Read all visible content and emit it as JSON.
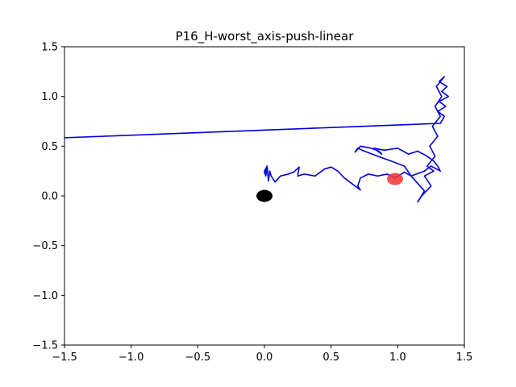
{
  "chart_data": {
    "type": "line",
    "title": "P16_H-worst_axis-push-linear",
    "xlabel": "",
    "ylabel": "",
    "xlim": [
      -1.5,
      1.5
    ],
    "ylim": [
      -1.5,
      1.5
    ],
    "x_ticks": [
      -1.5,
      -1.0,
      -0.5,
      0.0,
      0.5,
      1.0,
      1.5
    ],
    "x_tick_labels": [
      "−1.5",
      "−1.0",
      "−0.5",
      "0.0",
      "0.5",
      "1.0",
      "1.5"
    ],
    "y_ticks": [
      -1.5,
      -1.0,
      -0.5,
      0.0,
      0.5,
      1.0,
      1.5
    ],
    "y_tick_labels": [
      "−1.5",
      "−1.0",
      "−0.5",
      "0.0",
      "0.5",
      "1.0",
      "1.5"
    ],
    "grid": false,
    "series": [
      {
        "color": "#0000dd",
        "x": [
          -1.6,
          1.32,
          1.35,
          1.3,
          1.36,
          1.31,
          1.38,
          1.33,
          1.37,
          1.31,
          1.35,
          1.29,
          1.33,
          1.28,
          1.32,
          1.26,
          1.3,
          1.24,
          1.28,
          1.22,
          1.27,
          1.2,
          1.25,
          1.18,
          1.15,
          1.2,
          1.1,
          1.05,
          0.95,
          0.85,
          0.75,
          0.7,
          0.68,
          0.72,
          0.8,
          0.86,
          0.88,
          0.82,
          0.9,
          1.0,
          1.08,
          1.15,
          1.22,
          1.27,
          1.3,
          1.32,
          1.25,
          1.2,
          1.1,
          1.05,
          0.98,
          0.92,
          0.85,
          0.78,
          0.72,
          0.7,
          0.72,
          0.68,
          0.6,
          0.55,
          0.5,
          0.45,
          0.38,
          0.3,
          0.25,
          0.26,
          0.22,
          0.18,
          0.12,
          0.08,
          0.05,
          0.04,
          0.03,
          0.02,
          0.01,
          0.0,
          0.02,
          0.0
        ],
        "y": [
          0.58,
          0.73,
          0.8,
          0.85,
          0.9,
          0.95,
          1.0,
          1.05,
          1.1,
          1.15,
          1.2,
          1.1,
          1.0,
          0.9,
          0.8,
          0.7,
          0.6,
          0.5,
          0.4,
          0.3,
          0.25,
          0.2,
          0.1,
          0.0,
          -0.06,
          0.05,
          0.2,
          0.3,
          0.35,
          0.4,
          0.45,
          0.48,
          0.44,
          0.5,
          0.48,
          0.45,
          0.42,
          0.48,
          0.46,
          0.48,
          0.42,
          0.45,
          0.4,
          0.35,
          0.3,
          0.25,
          0.3,
          0.25,
          0.2,
          0.24,
          0.18,
          0.22,
          0.2,
          0.22,
          0.18,
          0.1,
          0.06,
          0.1,
          0.18,
          0.25,
          0.29,
          0.27,
          0.2,
          0.22,
          0.2,
          0.29,
          0.24,
          0.22,
          0.2,
          0.14,
          0.2,
          0.25,
          0.15,
          0.3,
          0.2,
          0.25,
          0.3,
          0.22
        ]
      }
    ],
    "markers": [
      {
        "x": 0.0,
        "y": 0.0,
        "color": "#000000"
      },
      {
        "x": 0.98,
        "y": 0.17,
        "color": "#ee3333"
      }
    ]
  }
}
